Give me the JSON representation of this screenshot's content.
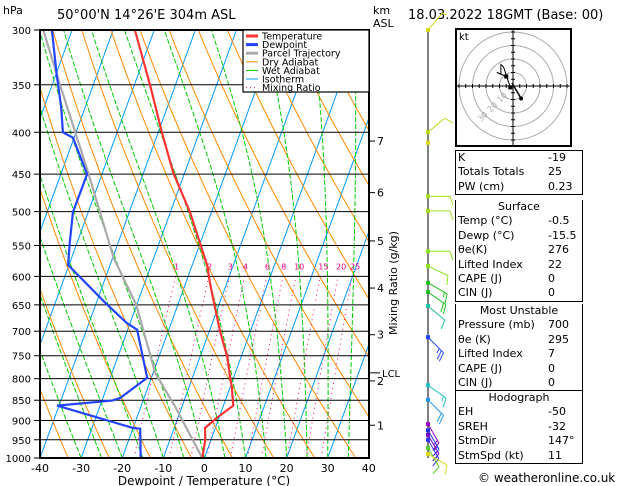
{
  "header": {
    "location": "50°00'N  14°26'E  304m  ASL",
    "datetime": "18.03.2022  18GMT  (Base: 00)",
    "hpa_label": "hPa",
    "km_label": "km",
    "asl_label": "ASL"
  },
  "footer": "© weatheronline.co.uk",
  "colors": {
    "temperature": "#ff3333",
    "dewpoint": "#2244ff",
    "parcel": "#aaaaaa",
    "dry": "#ff8800",
    "wet": "#00cc00",
    "iso": "#0099ff",
    "mix": "#ee0077"
  },
  "chart_data": {
    "type": "line",
    "title": "Skew-T log-P diagram",
    "xlabel": "Dewpoint / Temperature (°C)",
    "ylabel": "hPa",
    "right_axis_label": "Mixing Ratio (g/kg)",
    "xlim": [
      -40,
      40
    ],
    "ylim": [
      1000,
      300
    ],
    "x_ticks": [
      "-40",
      "-30",
      "-20",
      "-10",
      "0",
      "10",
      "20",
      "30",
      "40"
    ],
    "y_ticks": [
      "300",
      "350",
      "400",
      "450",
      "500",
      "550",
      "600",
      "650",
      "700",
      "750",
      "800",
      "850",
      "900",
      "950",
      "1000"
    ],
    "km_ticks": [
      {
        "label": "1",
        "p": 912
      },
      {
        "label": "2",
        "p": 805
      },
      {
        "label": "3",
        "p": 707
      },
      {
        "label": "4",
        "p": 620
      },
      {
        "label": "5",
        "p": 543
      },
      {
        "label": "6",
        "p": 474
      },
      {
        "label": "7",
        "p": 410
      }
    ],
    "lcl": {
      "label": "LCL",
      "p": 787
    },
    "mixing_ratio_labels": [
      "1",
      "2",
      "3",
      "4",
      "6",
      "8",
      "10",
      "15",
      "20",
      "25"
    ],
    "legend": [
      "Temperature",
      "Dewpoint",
      "Parcel Trajectory",
      "Dry Adiabat",
      "Wet Adiabat",
      "Isotherm",
      "Mixing Ratio"
    ],
    "series": [
      {
        "name": "Temperature",
        "points": [
          [
            1000,
            -0.5
          ],
          [
            950,
            -1.4
          ],
          [
            919,
            -2.5
          ],
          [
            893,
            -0.5
          ],
          [
            863,
            2.4
          ],
          [
            819,
            0.4
          ],
          [
            798,
            -0.8
          ],
          [
            752,
            -3.4
          ],
          [
            701,
            -7.3
          ],
          [
            637,
            -12.1
          ],
          [
            611,
            -14.1
          ],
          [
            581,
            -16.4
          ],
          [
            545,
            -20.2
          ],
          [
            501,
            -25.2
          ],
          [
            448,
            -32.8
          ],
          [
            400,
            -39.1
          ],
          [
            350,
            -46.2
          ],
          [
            300,
            -54.7
          ]
        ]
      },
      {
        "name": "Dewpoint",
        "points": [
          [
            1000,
            -15.5
          ],
          [
            921,
            -18.2
          ],
          [
            919,
            -20.0
          ],
          [
            863,
            -40.5
          ],
          [
            851,
            -27.5
          ],
          [
            845,
            -25.8
          ],
          [
            798,
            -21.0
          ],
          [
            697,
            -27.7
          ],
          [
            684,
            -30.8
          ],
          [
            648,
            -37.5
          ],
          [
            581,
            -50.2
          ],
          [
            545,
            -51.8
          ],
          [
            501,
            -53.7
          ],
          [
            450,
            -53.6
          ],
          [
            406,
            -60.3
          ],
          [
            400,
            -63.2
          ],
          [
            373,
            -65.8
          ],
          [
            340,
            -69.8
          ],
          [
            300,
            -74.9
          ]
        ]
      },
      {
        "name": "Parcel Trajectory",
        "points": [
          [
            1000,
            -0.5
          ],
          [
            865,
            -11.7
          ],
          [
            787,
            -19.5
          ],
          [
            650,
            -30.1
          ],
          [
            570,
            -39.7
          ],
          [
            445,
            -53.9
          ],
          [
            350,
            -68.1
          ],
          [
            300,
            -77
          ]
        ]
      }
    ],
    "wind_barbs": [
      {
        "p": 300,
        "dir": 40,
        "spd": 5,
        "color": "#d8d820"
      },
      {
        "p": 400,
        "dir": 50,
        "spd": 10,
        "color": "#b8dc20"
      },
      {
        "p": 412,
        "dir": 0,
        "spd": 0,
        "color": "#d8d820"
      },
      {
        "p": 479,
        "dir": 90,
        "spd": 10,
        "color": "#a8e020"
      },
      {
        "p": 499,
        "dir": 90,
        "spd": 10,
        "color": "#a0e020"
      },
      {
        "p": 559,
        "dir": 90,
        "spd": 10,
        "color": "#90e020"
      },
      {
        "p": 583,
        "dir": 115,
        "spd": 10,
        "color": "#90e020"
      },
      {
        "p": 611,
        "dir": 120,
        "spd": 15,
        "color": "#20c020"
      },
      {
        "p": 627,
        "dir": 125,
        "spd": 20,
        "color": "#20c020"
      },
      {
        "p": 652,
        "dir": 130,
        "spd": 10,
        "color": "#20c0a0"
      },
      {
        "p": 712,
        "dir": 135,
        "spd": 25,
        "color": "#2244ff"
      },
      {
        "p": 815,
        "dir": 125,
        "spd": 15,
        "color": "#20c0c0"
      },
      {
        "p": 849,
        "dir": 135,
        "spd": 20,
        "color": "#2299ee"
      },
      {
        "p": 909,
        "dir": 150,
        "spd": 15,
        "color": "#9900cc"
      },
      {
        "p": 925,
        "dir": 150,
        "spd": 15,
        "color": "#2233ee"
      },
      {
        "p": 937,
        "dir": 150,
        "spd": 15,
        "color": "#7700cc"
      },
      {
        "p": 950,
        "dir": 150,
        "spd": 15,
        "color": "#3333ff"
      },
      {
        "p": 972,
        "dir": 150,
        "spd": 10,
        "color": "#55cc33"
      },
      {
        "p": 989,
        "dir": 120,
        "spd": 10,
        "color": "#d8d820"
      }
    ],
    "hodograph": {
      "unit_label": "kt",
      "ring_labels": [
        "10",
        "20",
        "30"
      ],
      "trace": [
        [
          -2,
          -1
        ],
        [
          -5,
          8
        ],
        [
          -7,
          14
        ],
        [
          -9,
          16
        ],
        [
          -9,
          9
        ],
        [
          -12,
          10
        ],
        [
          -5,
          7
        ]
      ],
      "storm_dir": 147,
      "storm_spd": 11
    }
  },
  "indices": {
    "top": [
      {
        "k": "K",
        "v": "-19"
      },
      {
        "k": "Totals Totals",
        "v": "25"
      },
      {
        "k": "PW (cm)",
        "v": "0.23"
      }
    ],
    "surface": {
      "title": "Surface",
      "rows": [
        {
          "k": "Temp (°C)",
          "v": "-0.5"
        },
        {
          "k": "Dewp (°C)",
          "v": "-15.5"
        },
        {
          "k": "θe(K)",
          "v": "276"
        },
        {
          "k": "Lifted Index",
          "v": "22"
        },
        {
          "k": "CAPE (J)",
          "v": "0"
        },
        {
          "k": "CIN (J)",
          "v": "0"
        }
      ]
    },
    "most_unstable": {
      "title": "Most Unstable",
      "rows": [
        {
          "k": "Pressure (mb)",
          "v": "700"
        },
        {
          "k": "θe (K)",
          "v": "295"
        },
        {
          "k": "Lifted Index",
          "v": "7"
        },
        {
          "k": "CAPE (J)",
          "v": "0"
        },
        {
          "k": "CIN (J)",
          "v": "0"
        }
      ]
    },
    "hodograph": {
      "title": "Hodograph",
      "rows": [
        {
          "k": "EH",
          "v": "-50"
        },
        {
          "k": "SREH",
          "v": "-32"
        },
        {
          "k": "StmDir",
          "v": "147°"
        },
        {
          "k": "StmSpd (kt)",
          "v": "11"
        }
      ]
    }
  }
}
